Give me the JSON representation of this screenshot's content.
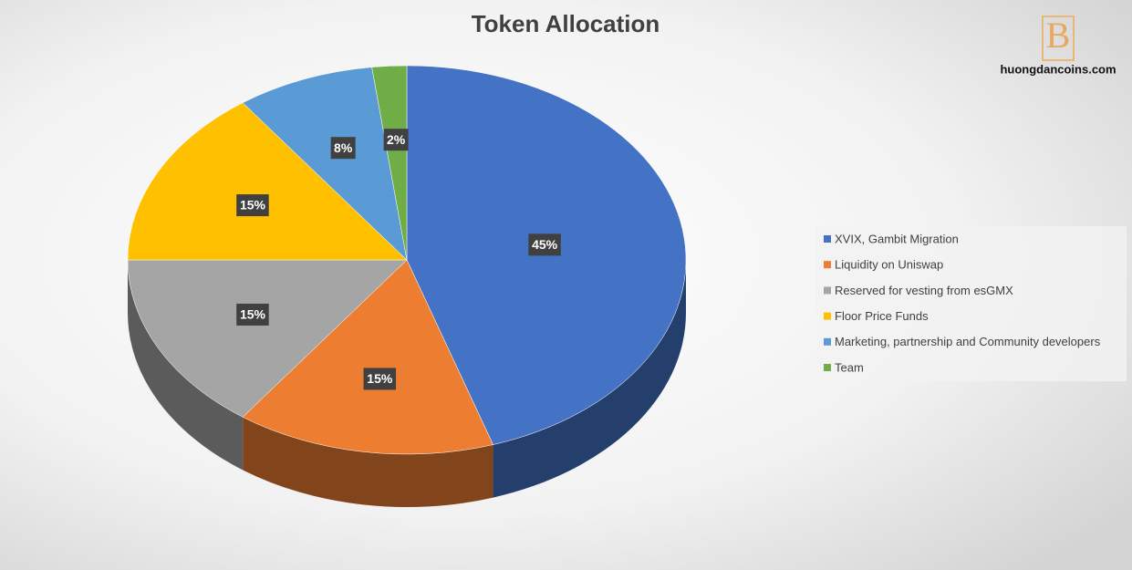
{
  "chart_data": {
    "type": "pie",
    "title": "Token Allocation",
    "watermark": "huongdancoins.com",
    "logo": "B",
    "categories": [
      "XVIX, Gambit Migration",
      "Liquidity on Uniswap",
      "Reserved for vesting from esGMX",
      "Floor Price Funds",
      "Marketing, partnership and Community developers",
      "Team"
    ],
    "values": [
      45,
      15,
      15,
      15,
      8,
      2
    ],
    "value_labels": [
      "45%",
      "15%",
      "15%",
      "15%",
      "8%",
      "2%"
    ],
    "colors": [
      "#4472c4",
      "#ed7d31",
      "#a5a5a5",
      "#ffc000",
      "#5b9bd5",
      "#70ad47"
    ],
    "legend": "right"
  }
}
